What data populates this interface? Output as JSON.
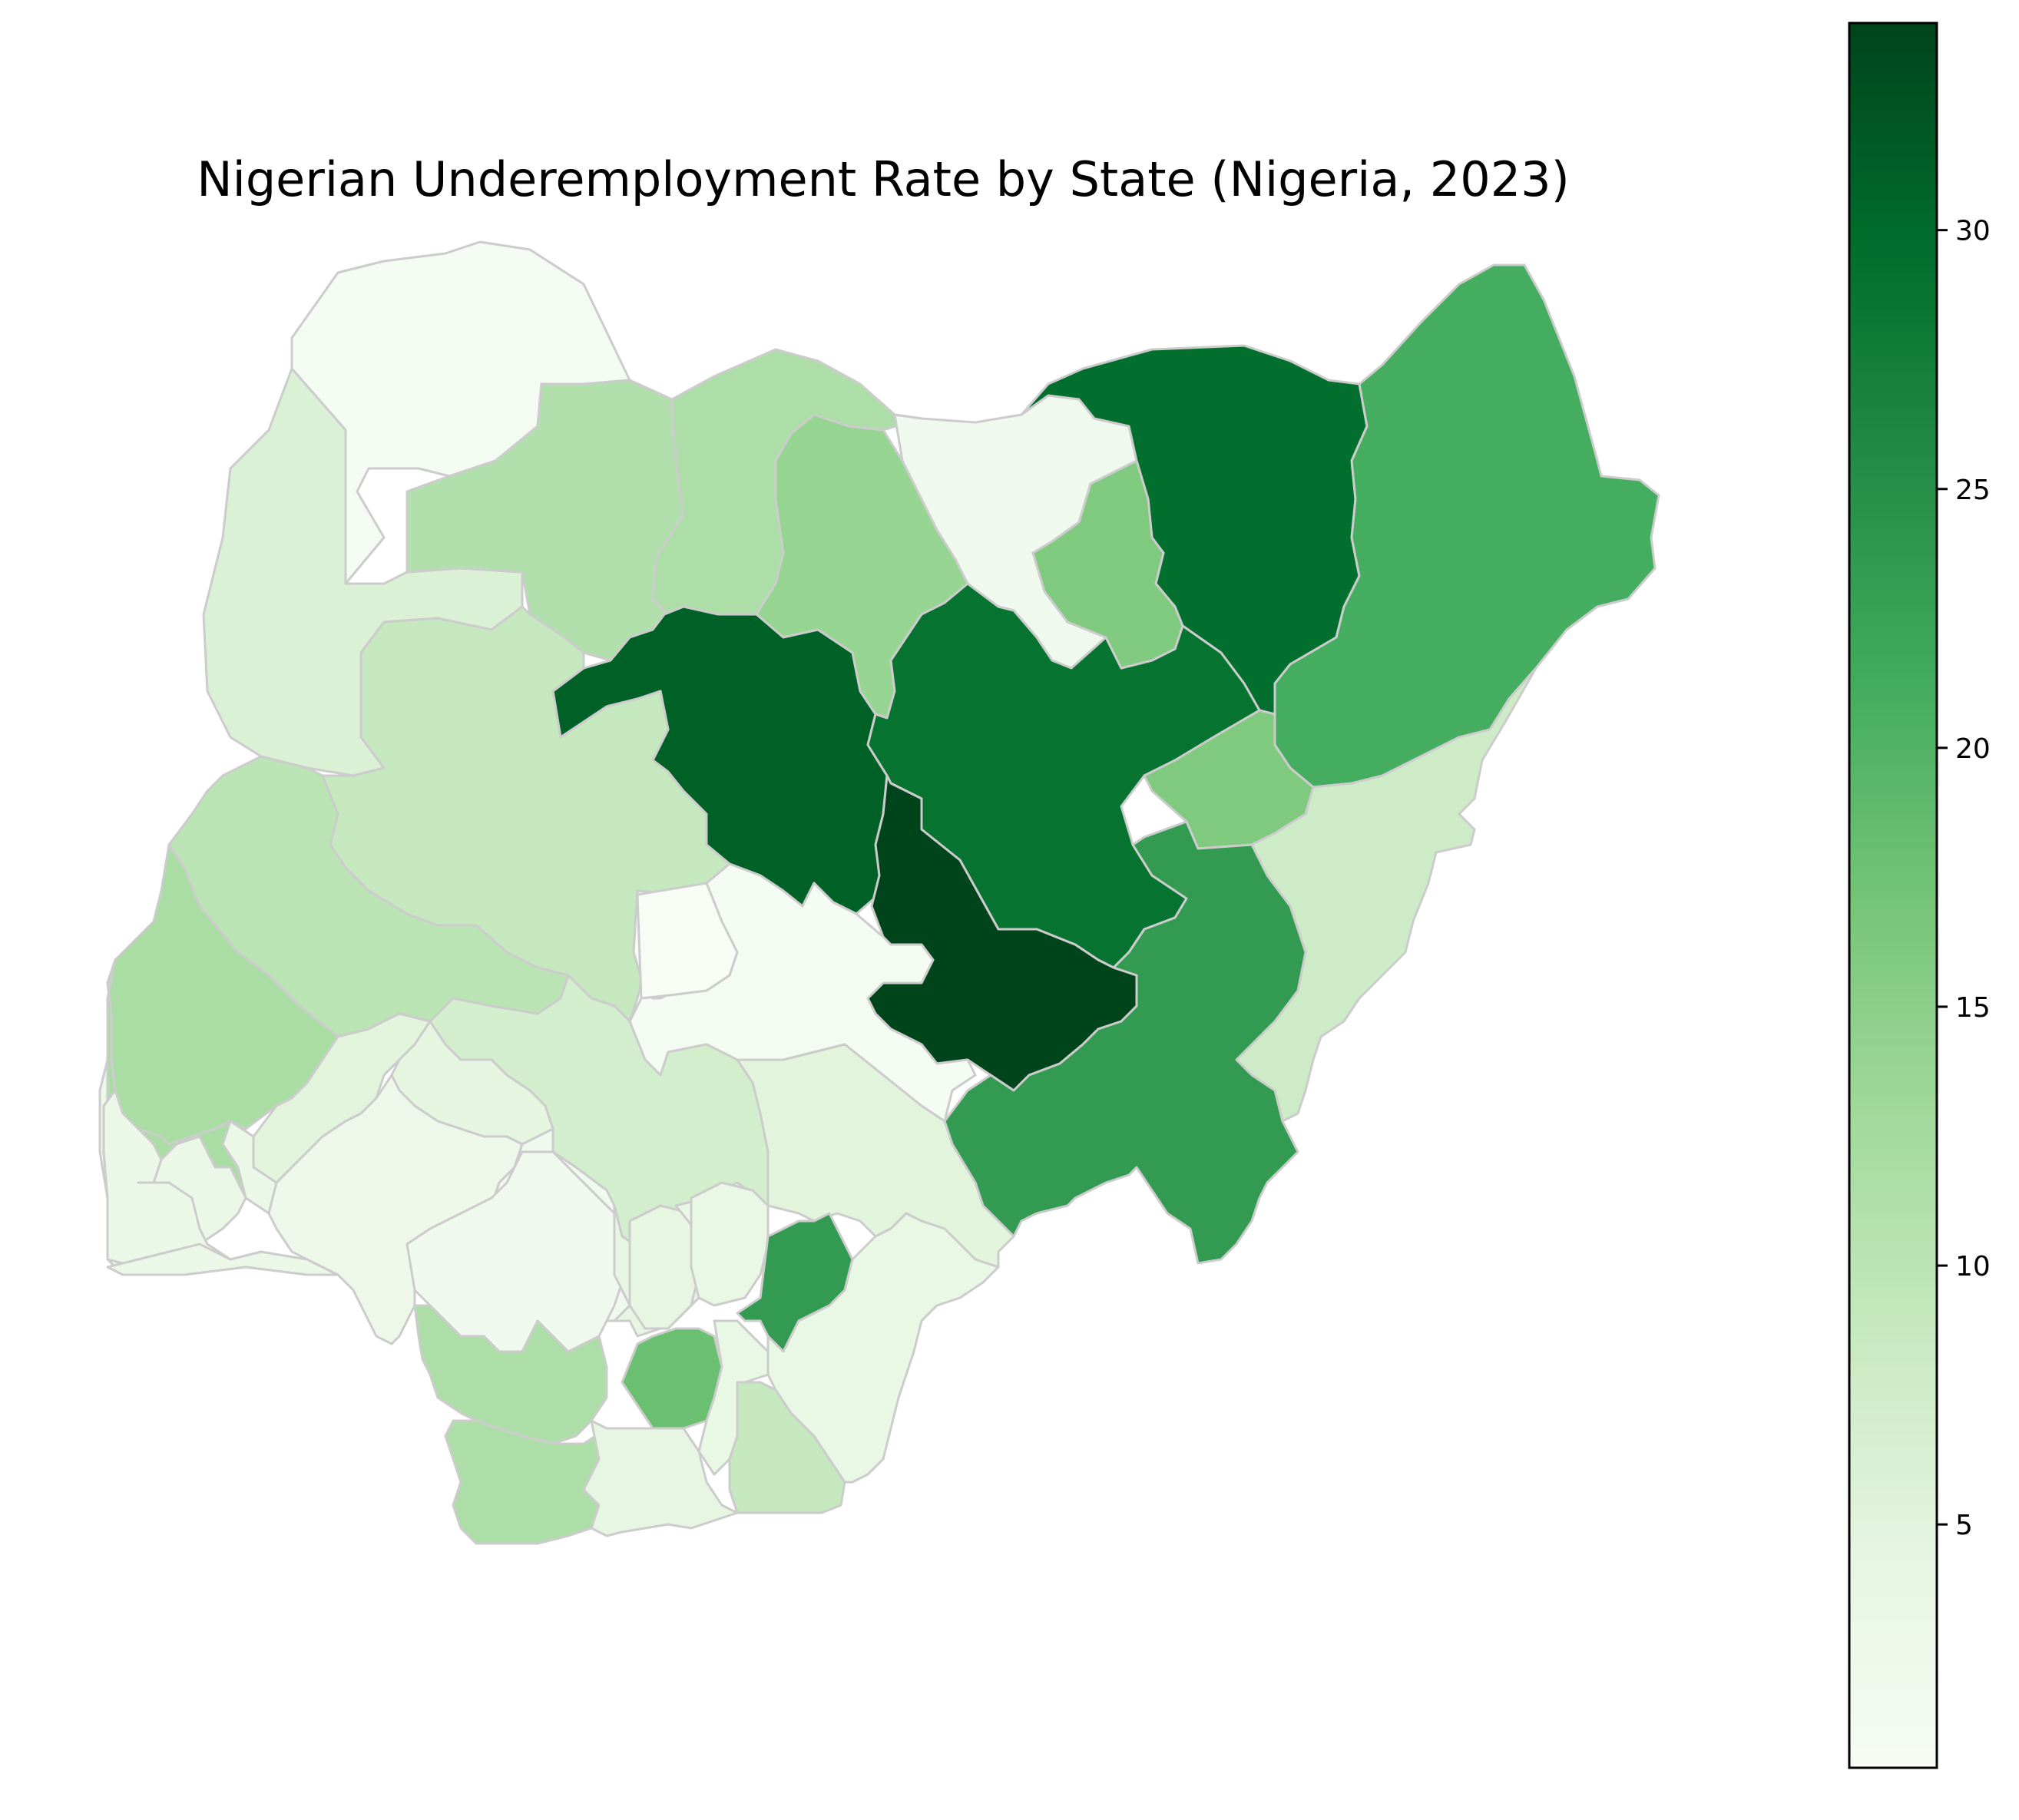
{
  "title": "Nigerian Underemployment Rate by State (Nigeria, 2023)",
  "chart_data": {
    "type": "choropleth",
    "title": "Nigerian Underemployment Rate by State (Nigeria, 2023)",
    "colormap": "Greens",
    "colorbar": {
      "min": 0.3,
      "max": 34.0,
      "ticks": [
        5,
        10,
        15,
        20,
        25,
        30
      ],
      "tick_labels": [
        "5",
        "10",
        "15",
        "20",
        "25",
        "30"
      ],
      "low_color": "#f7fcf5",
      "high_color": "#00441b"
    },
    "regions": [
      {
        "name": "Sokoto",
        "value": 1.0
      },
      {
        "name": "Kebbi",
        "value": 6.0
      },
      {
        "name": "Zamfara",
        "value": 11.0
      },
      {
        "name": "Katsina",
        "value": 11.5
      },
      {
        "name": "Kano",
        "value": 14.0
      },
      {
        "name": "Jigawa",
        "value": 2.0
      },
      {
        "name": "Yobe",
        "value": 29.5
      },
      {
        "name": "Borno",
        "value": 21.0
      },
      {
        "name": "Bauchi",
        "value": 29.0
      },
      {
        "name": "Gombe",
        "value": 16.0
      },
      {
        "name": "Kaduna",
        "value": 31.0
      },
      {
        "name": "Niger",
        "value": 9.0
      },
      {
        "name": "Kwara",
        "value": 10.0
      },
      {
        "name": "Plateau",
        "value": 34.0
      },
      {
        "name": "Adamawa",
        "value": 8.0
      },
      {
        "name": "Taraba",
        "value": 23.5
      },
      {
        "name": "Nasarawa",
        "value": 1.0
      },
      {
        "name": "FCT",
        "value": 0.0
      },
      {
        "name": "Benue",
        "value": 5.0
      },
      {
        "name": "Kogi",
        "value": 7.0
      },
      {
        "name": "Oyo",
        "value": 12.0
      },
      {
        "name": "Ogun",
        "value": 3.0
      },
      {
        "name": "Lagos",
        "value": 3.0
      },
      {
        "name": "Osun",
        "value": 5.0
      },
      {
        "name": "Ondo",
        "value": 2.5
      },
      {
        "name": "Ekiti",
        "value": 4.5
      },
      {
        "name": "Edo",
        "value": 2.0
      },
      {
        "name": "Delta",
        "value": 11.5
      },
      {
        "name": "Bayelsa",
        "value": 11.5
      },
      {
        "name": "Anambra",
        "value": 4.0
      },
      {
        "name": "Enugu",
        "value": 3.5
      },
      {
        "name": "Ebonyi",
        "value": 23.5
      },
      {
        "name": "Imo",
        "value": 18.0
      },
      {
        "name": "Abia",
        "value": 3.5
      },
      {
        "name": "Rivers",
        "value": 4.0
      },
      {
        "name": "Akwa Ibom",
        "value": 9.0
      },
      {
        "name": "Cross River",
        "value": 3.5
      }
    ]
  }
}
